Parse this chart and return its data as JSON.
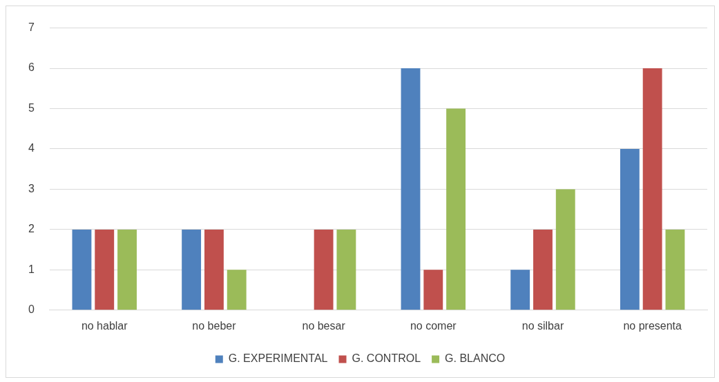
{
  "chart_data": {
    "type": "bar",
    "categories": [
      "no hablar",
      "no beber",
      "no besar",
      "no comer",
      "no silbar",
      "no presenta"
    ],
    "series": [
      {
        "name": "G. EXPERIMENTAL",
        "color": "#4f81bd",
        "values": [
          2,
          2,
          0,
          6,
          1,
          4
        ]
      },
      {
        "name": "G. CONTROL",
        "color": "#c0504d",
        "values": [
          2,
          2,
          2,
          1,
          2,
          6
        ]
      },
      {
        "name": "G. BLANCO",
        "color": "#9bbb59",
        "values": [
          2,
          1,
          2,
          5,
          3,
          2
        ]
      }
    ],
    "ylim": [
      0,
      7
    ],
    "yticks": [
      0,
      1,
      2,
      3,
      4,
      5,
      6,
      7
    ],
    "grid": "y",
    "legend": "bottom"
  }
}
